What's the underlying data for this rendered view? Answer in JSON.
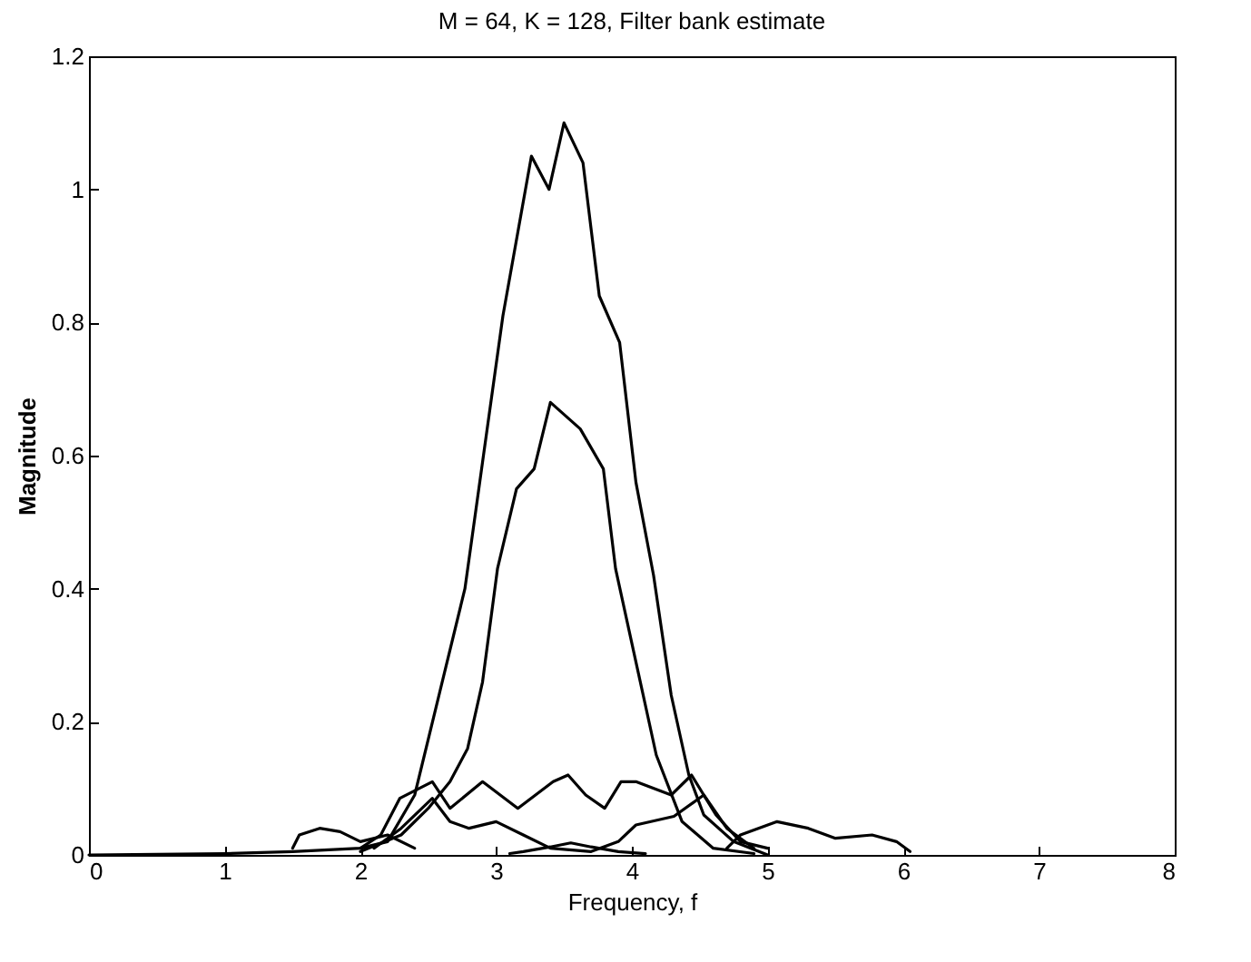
{
  "chart_data": {
    "type": "line",
    "title": "M = 64, K = 128, Filter bank estimate",
    "xlabel": "Frequency, f",
    "ylabel": "Magnitude",
    "xlim": [
      0,
      8
    ],
    "ylim": [
      0,
      1.2
    ],
    "xticks": [
      0,
      1,
      2,
      3,
      4,
      5,
      6,
      7,
      8
    ],
    "yticks": [
      0,
      0.2,
      0.4,
      0.6,
      0.8,
      1,
      1.2
    ],
    "grid": false,
    "series": [
      {
        "color": "#000000",
        "x": [
          0,
          1,
          1.5,
          2,
          2.2,
          2.4,
          2.77,
          3.05,
          3.26,
          3.39,
          3.5,
          3.64,
          3.76,
          3.91,
          4.03,
          4.16,
          4.29,
          4.42,
          4.53,
          4.75,
          5
        ],
        "values": [
          0,
          0.002,
          0.005,
          0.01,
          0.02,
          0.09,
          0.4,
          0.81,
          1.05,
          1.0,
          1.1,
          1.04,
          0.84,
          0.77,
          0.56,
          0.42,
          0.24,
          0.12,
          0.06,
          0.02,
          0
        ]
      },
      {
        "color": "#000000",
        "x": [
          2,
          2.3,
          2.5,
          2.66,
          2.79,
          2.9,
          3.01,
          3.15,
          3.28,
          3.4,
          3.62,
          3.79,
          3.88,
          4.03,
          4.18,
          4.37,
          4.6,
          4.9
        ],
        "values": [
          0.005,
          0.03,
          0.07,
          0.11,
          0.16,
          0.26,
          0.43,
          0.55,
          0.58,
          0.68,
          0.64,
          0.58,
          0.43,
          0.29,
          0.15,
          0.05,
          0.01,
          0.002
        ]
      },
      {
        "color": "#000000",
        "x": [
          2.0,
          2.15,
          2.29,
          2.53,
          2.66,
          2.9,
          3.16,
          3.42,
          3.53,
          3.66,
          3.8,
          3.92,
          4.03,
          4.29,
          4.44,
          4.62,
          4.8,
          5.0
        ],
        "values": [
          0.01,
          0.03,
          0.085,
          0.11,
          0.07,
          0.11,
          0.07,
          0.11,
          0.12,
          0.09,
          0.07,
          0.11,
          0.11,
          0.09,
          0.12,
          0.06,
          0.02,
          0.01
        ]
      },
      {
        "color": "#000000",
        "x": [
          2.1,
          2.3,
          2.53,
          2.66,
          2.8,
          3.0,
          3.2,
          3.4,
          3.7,
          3.9,
          4.03,
          4.31,
          4.53,
          4.7,
          4.9
        ],
        "values": [
          0.01,
          0.04,
          0.085,
          0.05,
          0.04,
          0.05,
          0.03,
          0.01,
          0.005,
          0.02,
          0.045,
          0.058,
          0.09,
          0.04,
          0.01
        ]
      },
      {
        "color": "#000000",
        "x": [
          3.1,
          3.2,
          3.4,
          3.55,
          3.7,
          3.9,
          4.1
        ],
        "values": [
          0.002,
          0.005,
          0.012,
          0.018,
          0.012,
          0.005,
          0.002
        ]
      },
      {
        "color": "#000000",
        "x": [
          1.5,
          1.55,
          1.7,
          1.85,
          2.0,
          2.2,
          2.4
        ],
        "values": [
          0.01,
          0.03,
          0.04,
          0.035,
          0.02,
          0.03,
          0.01
        ]
      },
      {
        "color": "#000000",
        "x": [
          4.7,
          4.8,
          5.07,
          5.3,
          5.5,
          5.77,
          5.95,
          6.05
        ],
        "values": [
          0.01,
          0.03,
          0.05,
          0.04,
          0.025,
          0.03,
          0.02,
          0.005
        ]
      }
    ]
  }
}
